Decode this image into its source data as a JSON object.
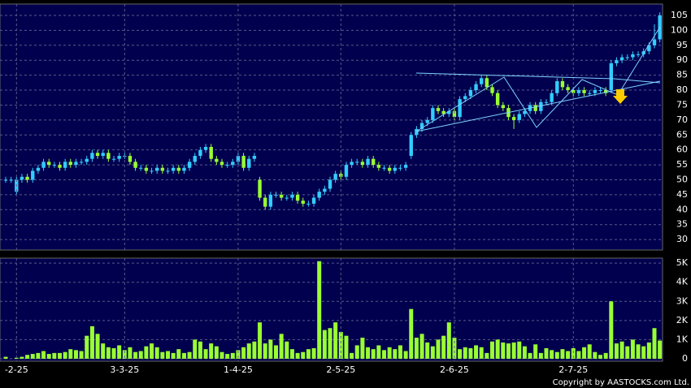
{
  "chart_data": [
    {
      "type": "candlestick",
      "up_color": "#33ccff",
      "down_color": "#99ff33",
      "grid": true,
      "ylim": [
        26.5,
        108.8
      ],
      "yticks": [
        30,
        35,
        40,
        45,
        50,
        55,
        60,
        65,
        70,
        75,
        80,
        85,
        90,
        95,
        100,
        105
      ],
      "open": [
        50,
        50,
        46,
        50,
        51,
        50,
        53,
        54,
        56,
        55,
        55,
        54,
        56,
        55,
        56,
        56,
        57,
        59,
        58,
        59,
        57,
        57,
        58,
        58,
        56,
        54,
        54,
        53,
        53,
        54,
        53,
        53,
        54,
        53,
        54,
        56,
        58,
        60,
        61,
        57,
        56,
        55,
        55,
        56,
        58,
        54,
        57,
        50,
        44,
        41,
        45,
        45,
        44,
        44,
        45,
        43,
        42,
        42,
        44,
        46,
        47,
        50,
        52,
        51,
        55,
        56,
        56,
        55,
        57,
        55,
        54,
        54,
        53,
        54,
        54,
        58,
        65,
        67,
        69,
        70,
        74,
        73,
        72,
        73,
        71,
        77,
        78,
        80,
        82,
        84,
        81,
        79,
        75,
        74,
        71,
        70,
        72,
        73,
        75,
        73,
        76,
        76,
        79,
        83,
        81,
        80,
        79,
        80,
        79,
        79,
        80,
        80,
        80,
        89,
        90,
        91,
        91,
        92,
        92,
        93,
        95,
        97
      ],
      "high": [
        51,
        51,
        51,
        52,
        52,
        54,
        55,
        57,
        57,
        56,
        56,
        57,
        57,
        57,
        57,
        58,
        60,
        60,
        60,
        60,
        58,
        59,
        59,
        59,
        57,
        55,
        55,
        54,
        55,
        55,
        54,
        55,
        55,
        55,
        57,
        59,
        61,
        62,
        62,
        58,
        57,
        56,
        57,
        59,
        59,
        58,
        59,
        51,
        45,
        46,
        46,
        46,
        45,
        46,
        46,
        44,
        43,
        45,
        47,
        48,
        51,
        53,
        53,
        56,
        57,
        57,
        57,
        58,
        58,
        56,
        55,
        55,
        55,
        55,
        56,
        66,
        68,
        70,
        71,
        75,
        75,
        74,
        74,
        74,
        78,
        79,
        81,
        83,
        85,
        85,
        82,
        80,
        76,
        75,
        72,
        73,
        74,
        76,
        76,
        77,
        77,
        80,
        84,
        84,
        82,
        81,
        81,
        81,
        80,
        81,
        81,
        81,
        90,
        91,
        92,
        92,
        93,
        93,
        94,
        96,
        102,
        106
      ],
      "low": [
        49,
        49,
        45,
        49,
        49,
        49,
        52,
        53,
        54,
        54,
        53,
        53,
        54,
        54,
        55,
        55,
        56,
        57,
        57,
        56,
        56,
        56,
        57,
        55,
        53,
        53,
        52,
        52,
        52,
        52,
        52,
        52,
        52,
        52,
        53,
        55,
        57,
        59,
        56,
        55,
        54,
        54,
        54,
        55,
        53,
        53,
        56,
        43,
        40,
        40,
        44,
        43,
        43,
        43,
        42,
        41,
        41,
        41,
        43,
        45,
        46,
        49,
        50,
        50,
        54,
        55,
        54,
        54,
        54,
        53,
        53,
        52,
        52,
        53,
        53,
        57,
        64,
        66,
        68,
        69,
        72,
        71,
        71,
        70,
        70,
        76,
        77,
        79,
        81,
        80,
        78,
        74,
        73,
        70,
        67,
        69,
        71,
        72,
        72,
        72,
        75,
        75,
        78,
        80,
        79,
        78,
        78,
        78,
        78,
        78,
        79,
        78,
        79,
        88,
        89,
        90,
        90,
        91,
        91,
        92,
        94,
        96
      ],
      "close": [
        50,
        50,
        50,
        51,
        50,
        53,
        54,
        56,
        55,
        55,
        54,
        56,
        55,
        56,
        56,
        57,
        59,
        58,
        59,
        57,
        57,
        58,
        58,
        56,
        54,
        54,
        53,
        53,
        54,
        53,
        53,
        54,
        53,
        54,
        56,
        58,
        60,
        61,
        57,
        56,
        55,
        55,
        56,
        58,
        54,
        57,
        58,
        44,
        41,
        45,
        45,
        44,
        44,
        45,
        43,
        42,
        42,
        44,
        46,
        47,
        50,
        52,
        51,
        55,
        56,
        56,
        55,
        57,
        55,
        54,
        54,
        53,
        54,
        54,
        55,
        65,
        67,
        69,
        70,
        74,
        73,
        72,
        73,
        71,
        77,
        78,
        80,
        82,
        84,
        81,
        79,
        75,
        74,
        71,
        70,
        72,
        73,
        75,
        73,
        76,
        76,
        79,
        83,
        81,
        80,
        79,
        80,
        79,
        79,
        80,
        80,
        79,
        89,
        90,
        91,
        91,
        92,
        92,
        93,
        95,
        97,
        105
      ]
    },
    {
      "type": "bar",
      "color": "#99ff33",
      "grid": true,
      "ylim": [
        -130,
        5260
      ],
      "yticks": [
        0,
        {
          "value": 1000,
          "label": "1K"
        },
        {
          "value": 2000,
          "label": "2K"
        },
        {
          "value": 3000,
          "label": "3K"
        },
        {
          "value": 4000,
          "label": "4K"
        },
        {
          "value": 5000,
          "label": "5K"
        }
      ],
      "categories": [
        null,
        null,
        "-2-25",
        null,
        null,
        null,
        null,
        null,
        null,
        null,
        null,
        null,
        null,
        null,
        null,
        null,
        null,
        null,
        null,
        null,
        null,
        null,
        "3-3-25",
        null,
        null,
        null,
        null,
        null,
        null,
        null,
        null,
        null,
        null,
        null,
        null,
        null,
        null,
        null,
        null,
        null,
        null,
        null,
        null,
        "1-4-25",
        null,
        null,
        null,
        null,
        null,
        null,
        null,
        null,
        null,
        null,
        null,
        null,
        null,
        null,
        null,
        null,
        null,
        null,
        "2-5-25",
        null,
        null,
        null,
        null,
        null,
        null,
        null,
        null,
        null,
        null,
        null,
        null,
        null,
        null,
        null,
        null,
        null,
        null,
        null,
        null,
        "2-6-25",
        null,
        null,
        null,
        null,
        null,
        null,
        null,
        null,
        null,
        null,
        null,
        null,
        null,
        null,
        null,
        null,
        null,
        null,
        null,
        null,
        null,
        "2-7-25",
        null,
        null,
        null,
        null,
        null,
        null,
        null,
        null,
        null,
        null,
        null,
        null,
        null,
        null,
        null,
        null
      ],
      "values": [
        100,
        0,
        50,
        100,
        200,
        250,
        300,
        400,
        250,
        300,
        300,
        350,
        500,
        450,
        400,
        1200,
        1700,
        1300,
        800,
        600,
        550,
        700,
        450,
        600,
        350,
        400,
        650,
        800,
        600,
        350,
        400,
        300,
        500,
        300,
        350,
        1000,
        900,
        500,
        800,
        650,
        350,
        250,
        300,
        450,
        600,
        800,
        900,
        1900,
        800,
        1000,
        700,
        1300,
        900,
        500,
        300,
        350,
        500,
        550,
        5100,
        1500,
        1600,
        1900,
        1400,
        1200,
        300,
        700,
        1100,
        600,
        500,
        700,
        450,
        600,
        500,
        700,
        400,
        2600,
        1100,
        1300,
        850,
        650,
        1000,
        1200,
        1900,
        1100,
        500,
        600,
        550,
        700,
        600,
        300,
        900,
        1000,
        850,
        800,
        850,
        900,
        650,
        300,
        750,
        300,
        550,
        450,
        350,
        500,
        400,
        550,
        400,
        600,
        750,
        350,
        200,
        300,
        3000,
        800,
        900,
        650,
        1000,
        750,
        650,
        850,
        1600,
        950
      ]
    }
  ],
  "footer": "Copyright by AASTOCKS.com Ltd."
}
